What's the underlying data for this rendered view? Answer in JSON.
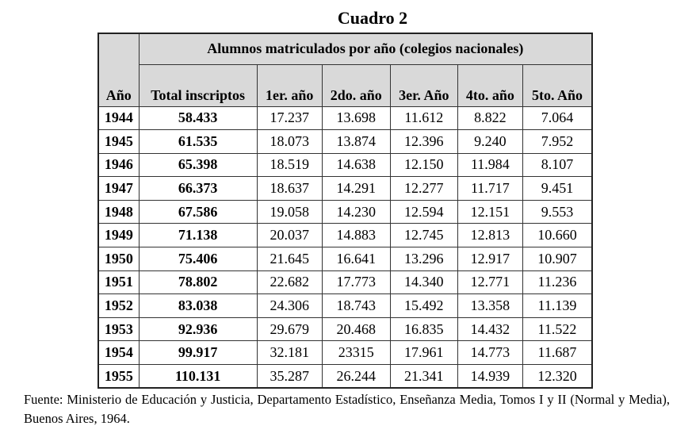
{
  "title": "Cuadro 2",
  "table": {
    "group_header": "Alumnos matriculados por año (colegios nacionales)",
    "columns": [
      "Año",
      "Total inscriptos",
      "1er. año",
      "2do. año",
      "3er. Año",
      "4to. año",
      "5to. Año"
    ],
    "rows": [
      [
        "1944",
        "58.433",
        "17.237",
        "13.698",
        "11.612",
        "8.822",
        "7.064"
      ],
      [
        "1945",
        "61.535",
        "18.073",
        "13.874",
        "12.396",
        "9.240",
        "7.952"
      ],
      [
        "1946",
        "65.398",
        "18.519",
        "14.638",
        "12.150",
        "11.984",
        "8.107"
      ],
      [
        "1947",
        "66.373",
        "18.637",
        "14.291",
        "12.277",
        "11.717",
        "9.451"
      ],
      [
        "1948",
        "67.586",
        "19.058",
        "14.230",
        "12.594",
        "12.151",
        "9.553"
      ],
      [
        "1949",
        "71.138",
        "20.037",
        "14.883",
        "12.745",
        "12.813",
        "10.660"
      ],
      [
        "1950",
        "75.406",
        "21.645",
        "16.641",
        "13.296",
        "12.917",
        "10.907"
      ],
      [
        "1951",
        "78.802",
        "22.682",
        "17.773",
        "14.340",
        "12.771",
        "11.236"
      ],
      [
        "1952",
        "83.038",
        "24.306",
        "18.743",
        "15.492",
        "13.358",
        "11.139"
      ],
      [
        "1953",
        "92.936",
        "29.679",
        "20.468",
        "16.835",
        "14.432",
        "11.522"
      ],
      [
        "1954",
        "99.917",
        "32.181",
        "23315",
        "17.961",
        "14.773",
        "11.687"
      ],
      [
        "1955",
        "110.131",
        "35.287",
        "26.244",
        "21.341",
        "14.939",
        "12.320"
      ]
    ]
  },
  "source": "Fuente: Ministerio de Educación y Justicia, Departamento Estadístico, Enseñanza Media, Tomos I y II (Normal y Media), Buenos Aires, 1964."
}
